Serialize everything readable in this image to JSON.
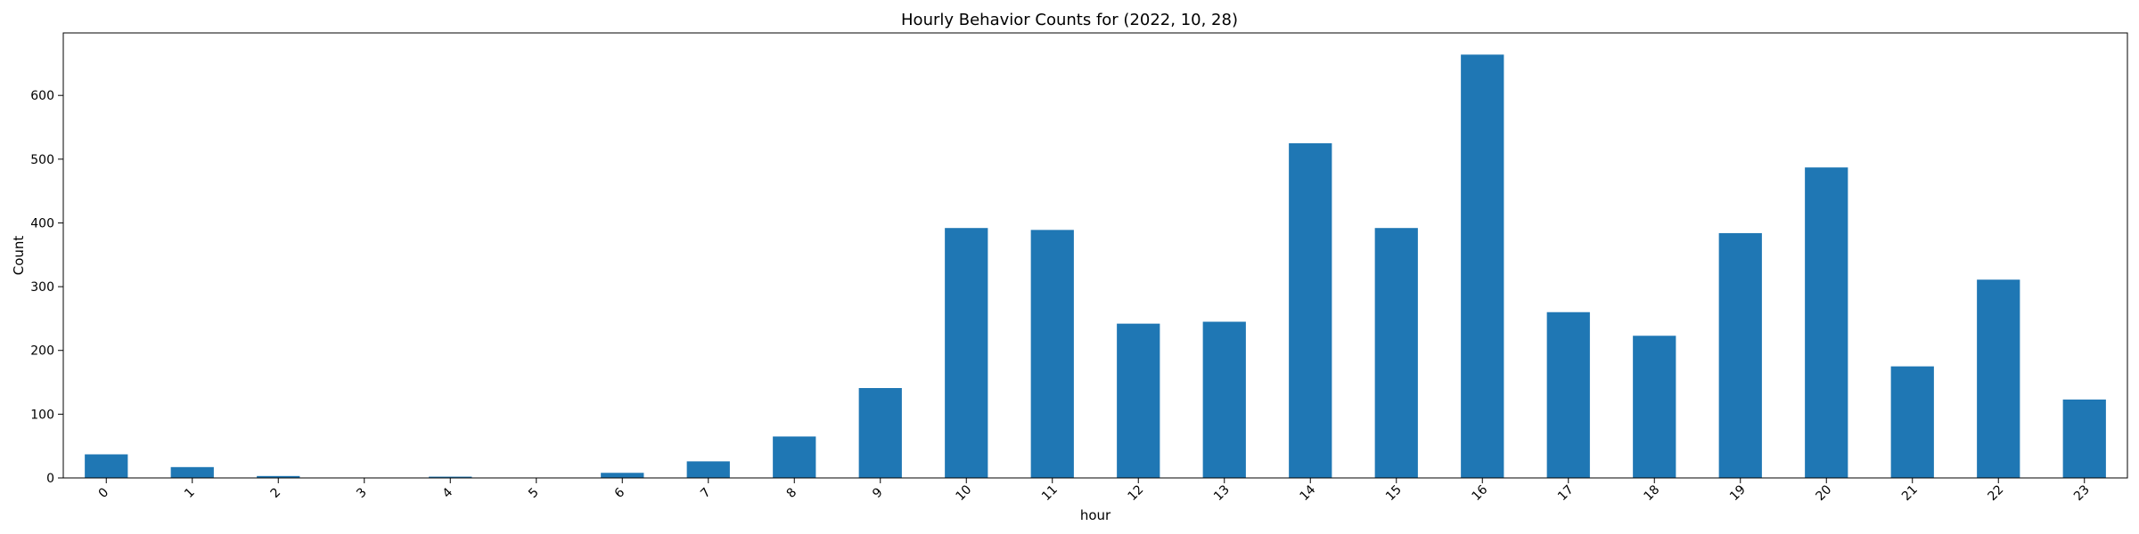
{
  "chart_data": {
    "type": "bar",
    "title": "Hourly Behavior Counts for (2022, 10, 28)",
    "xlabel": "hour",
    "ylabel": "Count",
    "categories": [
      "0",
      "1",
      "2",
      "3",
      "4",
      "5",
      "6",
      "7",
      "8",
      "9",
      "10",
      "11",
      "12",
      "13",
      "14",
      "15",
      "16",
      "17",
      "18",
      "19",
      "20",
      "21",
      "22",
      "23"
    ],
    "values": [
      37,
      17,
      3,
      0,
      2,
      0,
      8,
      26,
      65,
      141,
      392,
      389,
      242,
      245,
      525,
      392,
      664,
      260,
      223,
      384,
      487,
      175,
      311,
      123
    ],
    "ylim": [
      0,
      698
    ],
    "yticks": [
      0,
      100,
      200,
      300,
      400,
      500,
      600
    ],
    "grid": false,
    "bar_color": "#1f77b4"
  }
}
